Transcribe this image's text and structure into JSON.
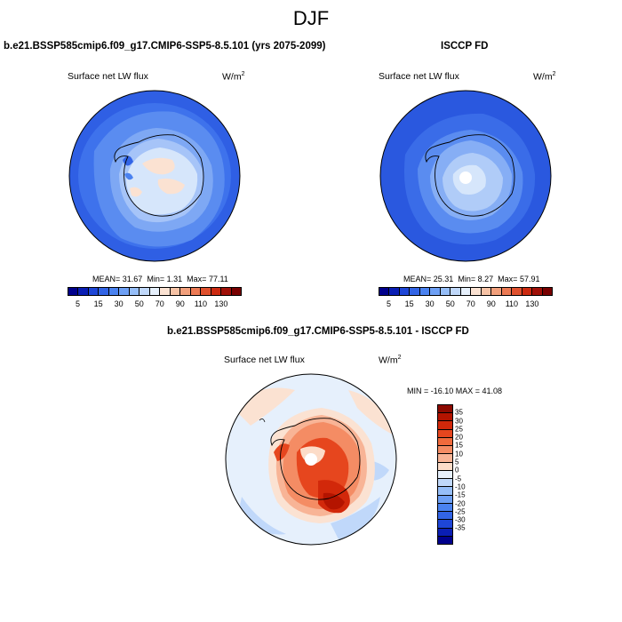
{
  "title": "DJF",
  "panels": [
    {
      "title": "b.e21.BSSP585cmip6.f09_g17.CMIP6-SSP5-8.5.101 (yrs 2075-2099)",
      "variable": "Surface net LW flux",
      "units": "W/m",
      "units_sup": "2",
      "mean_label": "MEAN=",
      "mean": "31.67",
      "min_label": "Min=",
      "min": "1.31",
      "max_label": "Max=",
      "max": "77.11"
    },
    {
      "title": "ISCCP FD",
      "variable": "Surface net LW flux",
      "units": "W/m",
      "units_sup": "2",
      "mean_label": "MEAN=",
      "mean": "25.31",
      "min_label": "Min=",
      "min": "8.27",
      "max_label": "Max=",
      "max": "57.91"
    },
    {
      "title": "b.e21.BSSP585cmip6.f09_g17.CMIP6-SSP5-8.5.101 - ISCCP FD",
      "variable": "Surface net LW flux",
      "units": "W/m",
      "units_sup": "2",
      "minmax_text": "MIN = -16.10 MAX = 41.08"
    }
  ],
  "colorbar_main": {
    "tick_labels": [
      "5",
      "15",
      "30",
      "50",
      "70",
      "90",
      "110",
      "130"
    ],
    "colors": [
      "#00008c",
      "#0a1eb4",
      "#1e46d7",
      "#3264e6",
      "#4a82f0",
      "#6ea0f5",
      "#96bef8",
      "#c0d8fa",
      "#e6f0fc",
      "#fbe2d2",
      "#f7c3a6",
      "#f2a07c",
      "#ec7a54",
      "#e0512e",
      "#cc2a10",
      "#a01008",
      "#780000"
    ]
  },
  "colorbar_diff": {
    "tick_labels": [
      "35",
      "30",
      "25",
      "20",
      "15",
      "10",
      "5",
      "0",
      "-5",
      "-10",
      "-15",
      "-20",
      "-25",
      "-30",
      "-35"
    ],
    "colors": [
      "#8c0a00",
      "#b41400",
      "#d2280a",
      "#e6461e",
      "#f06a3c",
      "#f48c64",
      "#f8b496",
      "#fcdcc8",
      "#e6f0fc",
      "#c0d8fa",
      "#96bef8",
      "#6ea0f5",
      "#4a82f0",
      "#3264e6",
      "#1e46d7",
      "#0a1eb4",
      "#00008c"
    ]
  }
}
